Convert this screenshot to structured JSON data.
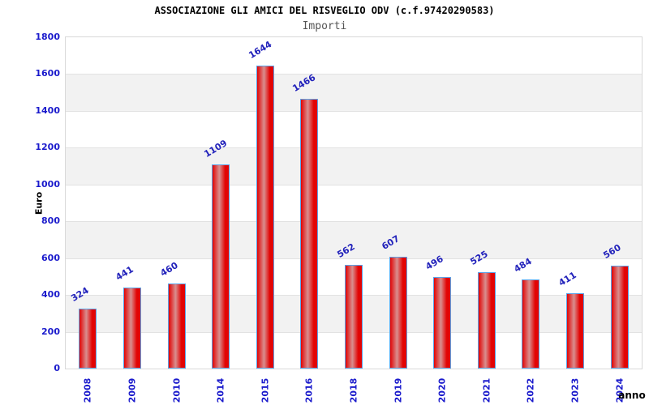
{
  "header": {
    "title": "ASSOCIAZIONE GLI AMICI DEL RISVEGLIO ODV (c.f.97420290583)",
    "subtitle": "Importi"
  },
  "chart_data": {
    "type": "bar",
    "title": "ASSOCIAZIONE GLI AMICI DEL RISVEGLIO ODV (c.f.97420290583)",
    "subtitle": "Importi",
    "xlabel": "anno",
    "ylabel": "Euro",
    "categories": [
      "2008",
      "2009",
      "2010",
      "2014",
      "2015",
      "2016",
      "2018",
      "2019",
      "2020",
      "2021",
      "2022",
      "2023",
      "2024"
    ],
    "values": [
      324,
      441,
      460,
      1109,
      1644,
      1466,
      562,
      607,
      496,
      525,
      484,
      411,
      560
    ],
    "ylim": [
      0,
      1800
    ],
    "ytick_step": 200,
    "legend": "none",
    "grid": "horizontal-bands",
    "band_ranges": [
      [
        200,
        400
      ],
      [
        600,
        800
      ],
      [
        1000,
        1200
      ],
      [
        1400,
        1600
      ]
    ],
    "colors": {
      "bar_edge_red": "#e20404",
      "bar_center_light": "#d98f8f",
      "bar_border_blue": "#5ba3e8",
      "value_label_blue": "#2222bb",
      "tick_label_blue": "#1a1acc",
      "band_gray": "#f2f2f2",
      "gridline_gray": "#e2e2e2",
      "plot_border_gray": "#d9d9d9",
      "title_black": "#000000",
      "subtitle_gray": "#555555"
    }
  }
}
